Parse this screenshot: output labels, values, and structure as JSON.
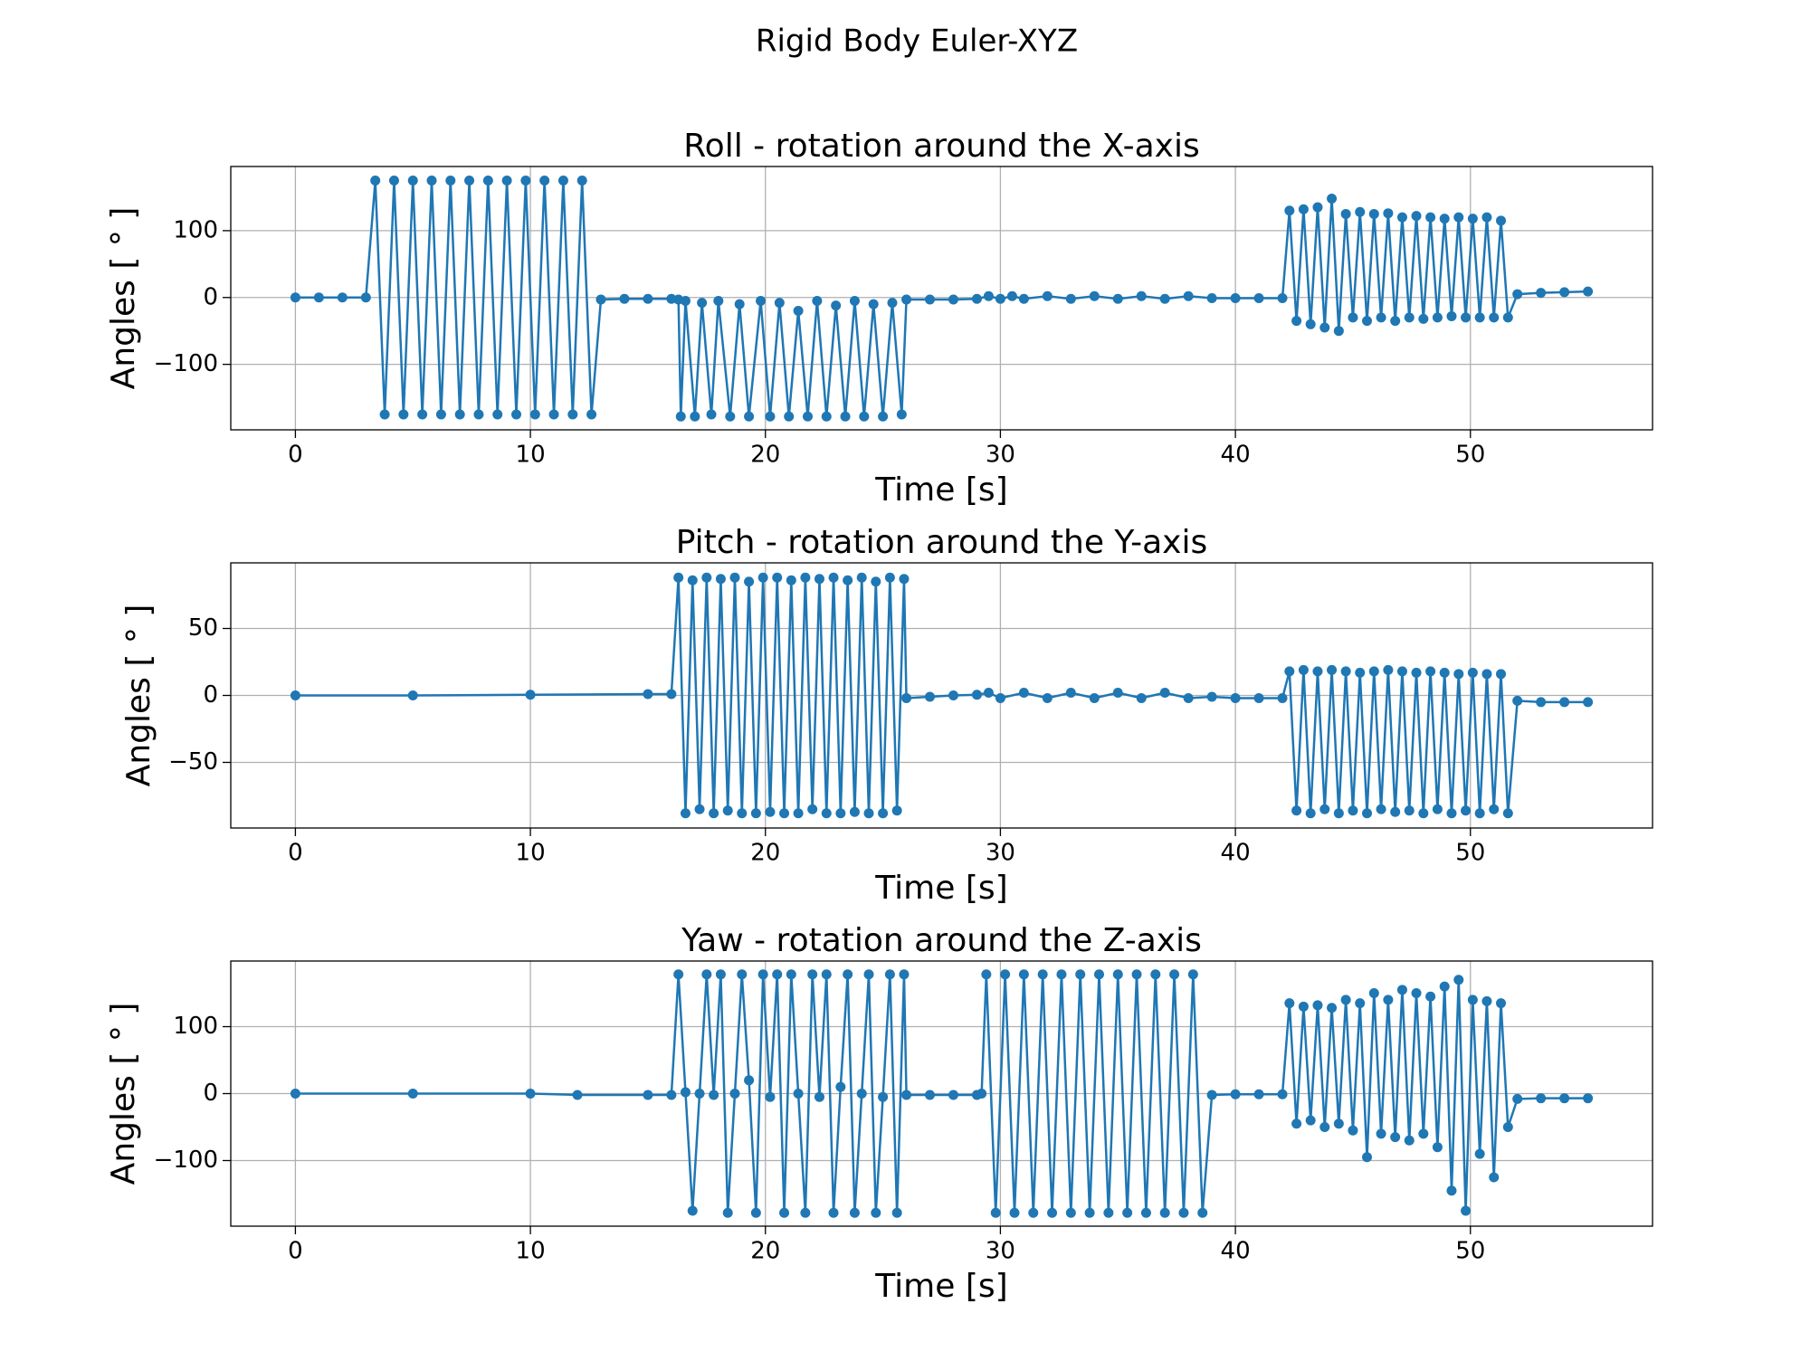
{
  "title": "Rigid Body Euler-XYZ",
  "chart_data": [
    {
      "type": "line",
      "title": "Roll - rotation around the X-axis",
      "xlabel": "Time [s]",
      "ylabel": "Angles [ ° ]",
      "color": "#1f77b4",
      "grid": true,
      "markers": true,
      "xlim": [
        -2.75,
        57.75
      ],
      "xticks": [
        0,
        10,
        20,
        30,
        40,
        50
      ],
      "ylim": [
        -198,
        196
      ],
      "yticks": [
        {
          "value": -100,
          "label": "−100"
        },
        0,
        100
      ],
      "x": [
        0,
        1,
        2,
        3,
        3.4,
        3.8,
        4.2,
        4.6,
        5.0,
        5.4,
        5.8,
        6.2,
        6.6,
        7.0,
        7.4,
        7.8,
        8.2,
        8.6,
        9.0,
        9.4,
        9.8,
        10.2,
        10.6,
        11.0,
        11.4,
        11.8,
        12.2,
        12.6,
        13,
        14,
        15,
        16,
        16.3,
        16.4,
        16.6,
        17.0,
        17.3,
        17.7,
        18.0,
        18.5,
        18.9,
        19.3,
        19.8,
        20.2,
        20.6,
        21.0,
        21.4,
        21.8,
        22.2,
        22.6,
        23.0,
        23.4,
        23.8,
        24.2,
        24.6,
        25.0,
        25.4,
        25.8,
        26.0,
        27,
        28,
        29,
        29.5,
        30,
        30.5,
        31,
        32,
        33,
        34,
        35,
        36,
        37,
        38,
        39,
        40,
        41,
        42,
        42.3,
        42.6,
        42.9,
        43.2,
        43.5,
        43.8,
        44.1,
        44.4,
        44.7,
        45.0,
        45.3,
        45.6,
        45.9,
        46.2,
        46.5,
        46.8,
        47.1,
        47.4,
        47.7,
        48.0,
        48.3,
        48.6,
        48.9,
        49.2,
        49.5,
        49.8,
        50.1,
        50.4,
        50.7,
        51.0,
        51.3,
        51.6,
        52,
        53,
        54,
        55
      ],
      "values": [
        0,
        0,
        0,
        0,
        175,
        -175,
        175,
        -175,
        175,
        -175,
        175,
        -175,
        175,
        -175,
        175,
        -175,
        175,
        -175,
        175,
        -175,
        175,
        -175,
        175,
        -175,
        175,
        -175,
        175,
        -175,
        -3,
        -2,
        -2,
        -2,
        -3,
        -178,
        -5,
        -178,
        -8,
        -175,
        -5,
        -178,
        -10,
        -178,
        -5,
        -178,
        -8,
        -178,
        -20,
        -178,
        -5,
        -178,
        -12,
        -178,
        -5,
        -178,
        -10,
        -178,
        -8,
        -175,
        -3,
        -3,
        -3,
        -2,
        2,
        -2,
        2,
        -2,
        2,
        -2,
        2,
        -2,
        2,
        -2,
        2,
        -1,
        -1,
        -1,
        -1,
        130,
        -35,
        132,
        -40,
        135,
        -45,
        148,
        -50,
        125,
        -30,
        128,
        -35,
        125,
        -30,
        126,
        -35,
        120,
        -30,
        122,
        -32,
        120,
        -30,
        118,
        -28,
        120,
        -30,
        118,
        -30,
        120,
        -30,
        115,
        -30,
        5,
        7,
        8,
        9
      ]
    },
    {
      "type": "line",
      "title": "Pitch - rotation around the Y-axis",
      "xlabel": "Time [s]",
      "ylabel": "Angles [ ° ]",
      "color": "#1f77b4",
      "grid": true,
      "markers": true,
      "xlim": [
        -2.75,
        57.75
      ],
      "xticks": [
        0,
        10,
        20,
        30,
        40,
        50
      ],
      "ylim": [
        -99,
        99
      ],
      "yticks": [
        {
          "value": -50,
          "label": "−50"
        },
        0,
        50
      ],
      "x": [
        0,
        5,
        10,
        15,
        16,
        16.3,
        16.6,
        16.9,
        17.2,
        17.5,
        17.8,
        18.1,
        18.4,
        18.7,
        19.0,
        19.3,
        19.6,
        19.9,
        20.2,
        20.5,
        20.8,
        21.1,
        21.4,
        21.7,
        22.0,
        22.3,
        22.6,
        22.9,
        23.2,
        23.5,
        23.8,
        24.1,
        24.4,
        24.7,
        25.0,
        25.3,
        25.6,
        25.9,
        26,
        27,
        28,
        29,
        29.5,
        30,
        31,
        32,
        33,
        34,
        35,
        36,
        37,
        38,
        39,
        40,
        41,
        42,
        42.3,
        42.6,
        42.9,
        43.2,
        43.5,
        43.8,
        44.1,
        44.4,
        44.7,
        45.0,
        45.3,
        45.6,
        45.9,
        46.2,
        46.5,
        46.8,
        47.1,
        47.4,
        47.7,
        48.0,
        48.3,
        48.6,
        48.9,
        49.2,
        49.5,
        49.8,
        50.1,
        50.4,
        50.7,
        51.0,
        51.3,
        51.6,
        52,
        53,
        54,
        55
      ],
      "values": [
        0,
        0,
        0.5,
        1,
        1,
        88,
        -88,
        86,
        -85,
        88,
        -88,
        87,
        -86,
        88,
        -88,
        85,
        -88,
        88,
        -87,
        88,
        -88,
        86,
        -88,
        88,
        -85,
        87,
        -88,
        88,
        -88,
        86,
        -87,
        88,
        -88,
        85,
        -88,
        88,
        -86,
        87,
        -2,
        -1,
        0,
        0.5,
        2,
        -2,
        2,
        -2,
        2,
        -2,
        2,
        -2,
        2,
        -2,
        -1,
        -2,
        -2,
        -2,
        18,
        -86,
        19,
        -88,
        18,
        -85,
        19,
        -88,
        18,
        -86,
        17,
        -88,
        18,
        -85,
        19,
        -87,
        18,
        -86,
        17,
        -88,
        18,
        -85,
        17,
        -88,
        16,
        -86,
        17,
        -88,
        16,
        -85,
        16,
        -88,
        -4,
        -5,
        -5,
        -5
      ]
    },
    {
      "type": "line",
      "title": "Yaw - rotation around the Z-axis",
      "xlabel": "Time [s]",
      "ylabel": "Angles [ ° ]",
      "color": "#1f77b4",
      "grid": true,
      "markers": true,
      "xlim": [
        -2.75,
        57.75
      ],
      "xticks": [
        0,
        10,
        20,
        30,
        40,
        50
      ],
      "ylim": [
        -198,
        198
      ],
      "yticks": [
        {
          "value": -100,
          "label": "−100"
        },
        0,
        100
      ],
      "x": [
        0,
        5,
        10,
        12,
        15,
        16,
        16.3,
        16.6,
        16.9,
        17.2,
        17.5,
        17.8,
        18.1,
        18.4,
        18.7,
        19.0,
        19.3,
        19.6,
        19.9,
        20.2,
        20.5,
        20.8,
        21.1,
        21.4,
        21.7,
        22.0,
        22.3,
        22.6,
        22.9,
        23.2,
        23.5,
        23.8,
        24.1,
        24.4,
        24.7,
        25.0,
        25.3,
        25.6,
        25.9,
        26,
        27,
        28,
        29,
        29.2,
        29.4,
        29.8,
        30.2,
        30.6,
        31.0,
        31.4,
        31.8,
        32.2,
        32.6,
        33.0,
        33.4,
        33.8,
        34.2,
        34.6,
        35.0,
        35.4,
        35.8,
        36.2,
        36.6,
        37.0,
        37.4,
        37.8,
        38.2,
        38.6,
        39,
        40,
        41,
        42,
        42.3,
        42.6,
        42.9,
        43.2,
        43.5,
        43.8,
        44.1,
        44.4,
        44.7,
        45.0,
        45.3,
        45.6,
        45.9,
        46.2,
        46.5,
        46.8,
        47.1,
        47.4,
        47.7,
        48.0,
        48.3,
        48.6,
        48.9,
        49.2,
        49.5,
        49.8,
        50.1,
        50.4,
        50.7,
        51.0,
        51.3,
        51.6,
        52,
        53,
        54,
        55
      ],
      "values": [
        0,
        0,
        0,
        -2,
        -2,
        -2,
        178,
        2,
        -175,
        0,
        178,
        -2,
        178,
        -178,
        0,
        178,
        20,
        -178,
        178,
        -5,
        178,
        -178,
        178,
        0,
        -178,
        178,
        -5,
        178,
        -178,
        10,
        178,
        -178,
        0,
        178,
        -178,
        -5,
        178,
        -178,
        178,
        -2,
        -2,
        -2,
        -2,
        0,
        178,
        -178,
        178,
        -178,
        178,
        -178,
        178,
        -178,
        178,
        -178,
        178,
        -178,
        178,
        -178,
        178,
        -178,
        178,
        -178,
        178,
        -178,
        178,
        -178,
        178,
        -178,
        -2,
        -1,
        -1,
        -1,
        135,
        -45,
        130,
        -40,
        132,
        -50,
        128,
        -45,
        140,
        -55,
        135,
        -95,
        150,
        -60,
        140,
        -65,
        155,
        -70,
        150,
        -60,
        145,
        -80,
        160,
        -145,
        170,
        -175,
        140,
        -90,
        138,
        -125,
        135,
        -50,
        -8,
        -7,
        -7,
        -7
      ]
    }
  ]
}
